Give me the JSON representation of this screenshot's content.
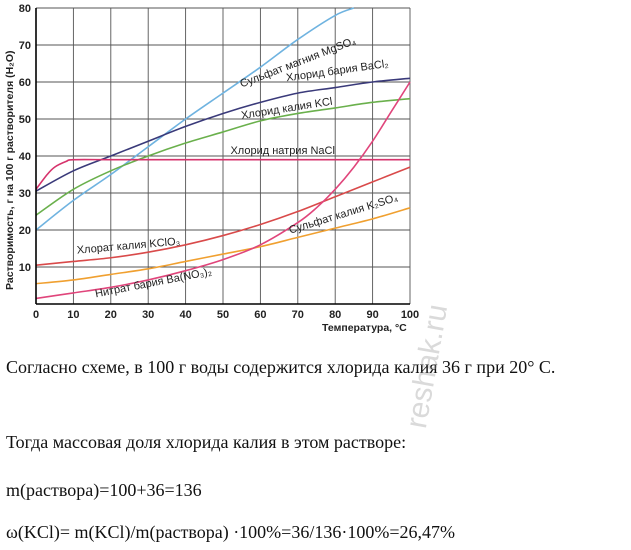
{
  "chart_data": {
    "type": "line",
    "xlabel": "Температура, °С",
    "ylabel": "Растворимость, г на 100 г растворителя (H₂O)",
    "xlim": [
      0,
      100
    ],
    "ylim": [
      0,
      80
    ],
    "x_ticks": [
      0,
      10,
      20,
      30,
      40,
      50,
      60,
      70,
      80,
      90,
      100
    ],
    "y_ticks": [
      10,
      20,
      30,
      40,
      50,
      60,
      70,
      80
    ],
    "grid": true,
    "series": [
      {
        "name": "Сульфат магния MgSO₄",
        "color": "#6fb3e0",
        "x": [
          0,
          10,
          20,
          30,
          40,
          50,
          60,
          70,
          80,
          85
        ],
        "y": [
          20,
          28,
          35,
          42.5,
          50,
          57,
          64,
          71.5,
          78,
          80
        ]
      },
      {
        "name": "Хлорид бария BaCl₂",
        "color": "#3a3a7a",
        "x": [
          0,
          10,
          20,
          30,
          40,
          50,
          60,
          70,
          80,
          90,
          100
        ],
        "y": [
          30.5,
          36,
          40,
          44,
          48,
          51.5,
          54.5,
          57,
          58.5,
          60,
          61
        ]
      },
      {
        "name": "Хлорид калия KCl",
        "color": "#6ab04c",
        "x": [
          0,
          10,
          20,
          30,
          40,
          50,
          60,
          70,
          80,
          90,
          100
        ],
        "y": [
          24,
          31,
          36,
          40,
          43.5,
          46.5,
          49.5,
          51.5,
          53,
          54.5,
          55.5
        ]
      },
      {
        "name": "Хлорид натрия NaCl",
        "color": "#d6336c",
        "x": [
          0,
          3,
          5,
          8,
          10,
          20,
          30,
          40,
          50,
          60,
          70,
          80,
          90,
          100
        ],
        "y": [
          31,
          35,
          37,
          38.5,
          39,
          39,
          39,
          39,
          39,
          39,
          39,
          39,
          39,
          39
        ]
      },
      {
        "name": "Хлорат калия KClO₃",
        "color": "#d94a4a",
        "x": [
          0,
          10,
          20,
          30,
          40,
          50,
          60,
          70,
          80,
          90,
          100
        ],
        "y": [
          10.5,
          11.5,
          12.5,
          14,
          16,
          18.5,
          21.5,
          25,
          29,
          33,
          37
        ]
      },
      {
        "name": "Сульфат калия K₂SO₄",
        "color": "#f0a030",
        "x": [
          0,
          10,
          20,
          30,
          40,
          50,
          60,
          70,
          80,
          90,
          100
        ],
        "y": [
          5.5,
          6.5,
          8,
          9.5,
          11.5,
          13.5,
          15.5,
          18,
          20.5,
          23,
          26
        ]
      },
      {
        "name": "Нитрат бария Ba(NO₃)₂",
        "color": "#e0457b",
        "x": [
          0,
          10,
          20,
          30,
          40,
          50,
          60,
          70,
          75,
          80,
          85,
          90,
          95,
          100
        ],
        "y": [
          1.5,
          3,
          4.5,
          6.5,
          9,
          12,
          16,
          22,
          26,
          31,
          37,
          44,
          52,
          60
        ]
      }
    ]
  },
  "text": {
    "p1": "Согласно схеме, в 100 г воды содержится хлорида калия 36 г при 20° С.",
    "p2": "Тогда массовая доля хлорида калия в этом растворе:",
    "p3": "m(раствора)=100+36=136",
    "p4": "ω(KCl)= m(KCl)/m(раствора) ·100%=36/136·100%=26,47%",
    "watermark": "reshak.ru"
  }
}
